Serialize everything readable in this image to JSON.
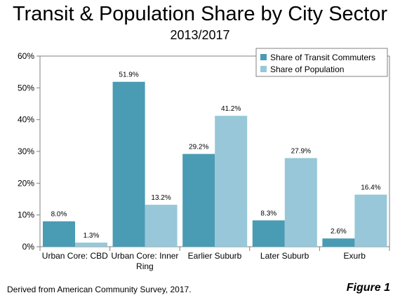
{
  "header": {
    "title": "Transit & Population Share by City Sector",
    "subtitle": "2013/2017"
  },
  "footer": {
    "note": "Derived from American Community Survey, 2017.",
    "figure": "Figure 1"
  },
  "chart_data": {
    "type": "bar",
    "categories": [
      [
        "Urban Core: CBD"
      ],
      [
        "Urban Core: Inner",
        "Ring"
      ],
      [
        "Earlier Suburb"
      ],
      [
        "Later Suburb"
      ],
      [
        "Exurb"
      ]
    ],
    "series": [
      {
        "name": "Share of Transit Commuters",
        "color": "#4a9bb4",
        "values": [
          8.0,
          51.9,
          29.2,
          8.3,
          2.6
        ],
        "labels": [
          "8.0%",
          "51.9%",
          "29.2%",
          "8.3%",
          "2.6%"
        ]
      },
      {
        "name": "Share of Population",
        "color": "#97c7d8",
        "values": [
          1.3,
          13.2,
          41.2,
          27.9,
          16.4
        ],
        "labels": [
          "1.3%",
          "13.2%",
          "41.2%",
          "27.9%",
          "16.4%"
        ]
      }
    ],
    "yticks": [
      0,
      10,
      20,
      30,
      40,
      50,
      60
    ],
    "ytick_labels": [
      "0%",
      "10%",
      "20%",
      "30%",
      "40%",
      "50%",
      "60%"
    ],
    "ylim": [
      0,
      60
    ],
    "grid": false,
    "legend_position": "top-right"
  }
}
